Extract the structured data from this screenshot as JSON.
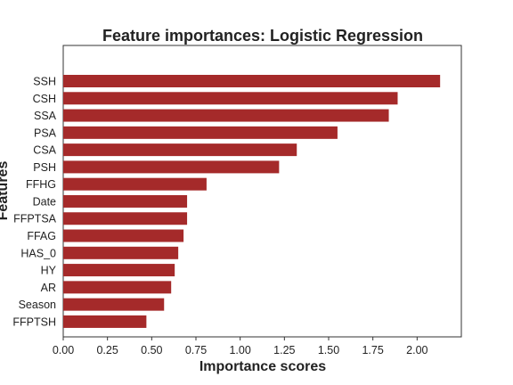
{
  "chart_data": {
    "type": "bar",
    "orientation": "horizontal",
    "title": "Feature importances: Logistic Regression",
    "xlabel": "Importance scores",
    "ylabel": "Features",
    "categories": [
      "SSH",
      "CSH",
      "SSA",
      "PSA",
      "CSA",
      "PSH",
      "FFHG",
      "Date",
      "FFPTSA",
      "FFAG",
      "HAS_0",
      "HY",
      "AR",
      "Season",
      "FFPTSH"
    ],
    "values": [
      2.13,
      1.89,
      1.84,
      1.55,
      1.32,
      1.22,
      0.81,
      0.7,
      0.7,
      0.68,
      0.65,
      0.63,
      0.61,
      0.57,
      0.47
    ],
    "xlim": [
      0,
      2.25
    ],
    "xticks": [
      "0.00",
      "0.25",
      "0.50",
      "0.75",
      "1.00",
      "1.25",
      "1.50",
      "1.75",
      "2.00"
    ],
    "bar_color": "#A52A2A",
    "grid": false,
    "legend": "none"
  }
}
